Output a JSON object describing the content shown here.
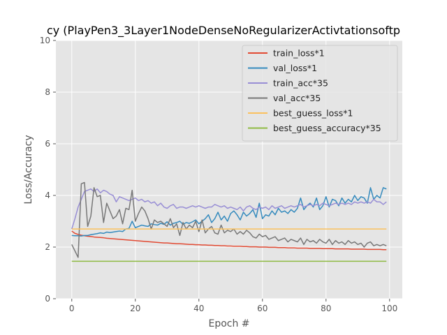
{
  "chart_data": {
    "type": "line",
    "title": "cy (PlayPen3_3Layer1NodeDenseNoRegularizerActivtationsoftp",
    "xlabel": "Epoch #",
    "ylabel": "Loss/Accuracy",
    "xlim": [
      -5,
      104
    ],
    "ylim": [
      0,
      10
    ],
    "xticks": [
      0,
      20,
      40,
      60,
      80,
      100
    ],
    "yticks": [
      0,
      2,
      4,
      6,
      8,
      10
    ],
    "grid": true,
    "legend_position": "top-right",
    "series": [
      {
        "name": "train_loss*1",
        "color": "#E24A33",
        "x_start": 0,
        "values": [
          2.62,
          2.53,
          2.49,
          2.46,
          2.44,
          2.42,
          2.41,
          2.39,
          2.38,
          2.37,
          2.36,
          2.34,
          2.33,
          2.32,
          2.31,
          2.3,
          2.29,
          2.28,
          2.27,
          2.26,
          2.25,
          2.24,
          2.23,
          2.22,
          2.21,
          2.2,
          2.19,
          2.18,
          2.17,
          2.16,
          2.16,
          2.15,
          2.14,
          2.13,
          2.13,
          2.12,
          2.11,
          2.1,
          2.1,
          2.09,
          2.09,
          2.08,
          2.08,
          2.07,
          2.07,
          2.06,
          2.06,
          2.05,
          2.05,
          2.04,
          2.04,
          2.03,
          2.03,
          2.03,
          2.02,
          2.02,
          2.01,
          2.01,
          2.01,
          2.0,
          2.0,
          2.0,
          1.99,
          1.99,
          1.99,
          1.98,
          1.98,
          1.98,
          1.97,
          1.97,
          1.97,
          1.96,
          1.96,
          1.96,
          1.96,
          1.95,
          1.95,
          1.95,
          1.95,
          1.94,
          1.94,
          1.94,
          1.94,
          1.93,
          1.93,
          1.93,
          1.93,
          1.93,
          1.92,
          1.92,
          1.92,
          1.92,
          1.92,
          1.91,
          1.91,
          1.91,
          1.91,
          1.91,
          1.9,
          1.9
        ]
      },
      {
        "name": "val_loss*1",
        "color": "#348ABD",
        "x_start": 0,
        "values": [
          2.45,
          2.44,
          2.44,
          2.43,
          2.45,
          2.45,
          2.48,
          2.5,
          2.52,
          2.55,
          2.53,
          2.58,
          2.56,
          2.58,
          2.6,
          2.62,
          2.6,
          2.7,
          2.72,
          3.0,
          2.75,
          2.8,
          2.85,
          2.82,
          2.8,
          2.9,
          2.87,
          2.85,
          2.92,
          2.88,
          2.98,
          2.85,
          2.92,
          2.95,
          3.0,
          2.88,
          2.95,
          2.92,
          2.98,
          3.05,
          2.9,
          3.0,
          3.1,
          3.25,
          2.95,
          3.1,
          3.35,
          3.05,
          3.2,
          3.0,
          3.3,
          3.4,
          3.25,
          3.05,
          3.35,
          3.2,
          3.3,
          3.45,
          3.15,
          3.7,
          3.1,
          3.25,
          3.2,
          3.4,
          3.25,
          3.5,
          3.35,
          3.4,
          3.3,
          3.45,
          3.35,
          3.5,
          3.9,
          3.45,
          3.6,
          3.7,
          3.55,
          3.9,
          3.45,
          3.6,
          3.95,
          3.55,
          3.85,
          3.8,
          3.6,
          3.9,
          3.7,
          3.85,
          3.75,
          4.0,
          3.8,
          3.95,
          3.9,
          3.7,
          4.3,
          3.85,
          4.0,
          3.9,
          4.3,
          4.25
        ]
      },
      {
        "name": "train_acc*35",
        "color": "#988ED5",
        "x_start": 0,
        "values": [
          2.7,
          3.1,
          3.55,
          3.85,
          4.15,
          4.2,
          4.25,
          4.15,
          4.25,
          4.1,
          4.2,
          4.15,
          4.05,
          4.0,
          3.75,
          3.95,
          3.9,
          3.85,
          3.8,
          3.85,
          3.9,
          3.8,
          3.85,
          3.75,
          3.8,
          3.7,
          3.75,
          3.6,
          3.7,
          3.55,
          3.5,
          3.6,
          3.65,
          3.5,
          3.55,
          3.55,
          3.5,
          3.55,
          3.6,
          3.55,
          3.6,
          3.55,
          3.5,
          3.55,
          3.55,
          3.65,
          3.6,
          3.55,
          3.6,
          3.5,
          3.55,
          3.5,
          3.45,
          3.55,
          3.4,
          3.55,
          3.6,
          3.5,
          3.45,
          3.55,
          3.5,
          3.55,
          3.45,
          3.6,
          3.5,
          3.55,
          3.6,
          3.5,
          3.55,
          3.6,
          3.55,
          3.6,
          3.65,
          3.55,
          3.6,
          3.65,
          3.6,
          3.65,
          3.6,
          3.7,
          3.65,
          3.6,
          3.65,
          3.7,
          3.65,
          3.7,
          3.65,
          3.7,
          3.65,
          3.75,
          3.7,
          3.75,
          3.7,
          3.75,
          3.7,
          3.85,
          3.75,
          3.75,
          3.65,
          3.75
        ]
      },
      {
        "name": "val_acc*35",
        "color": "#777777",
        "x_start": 0,
        "values": [
          2.1,
          1.85,
          1.6,
          4.45,
          4.5,
          2.8,
          3.2,
          4.3,
          3.95,
          4.0,
          2.95,
          3.7,
          3.4,
          3.1,
          3.2,
          3.45,
          2.9,
          3.5,
          3.45,
          4.2,
          3.0,
          3.3,
          3.55,
          3.4,
          3.1,
          2.7,
          3.05,
          2.95,
          3.0,
          2.9,
          2.8,
          3.1,
          2.75,
          2.9,
          2.45,
          2.95,
          2.7,
          2.85,
          2.75,
          3.0,
          2.6,
          3.05,
          2.55,
          2.7,
          2.8,
          2.55,
          2.5,
          2.85,
          2.55,
          2.65,
          2.6,
          2.7,
          2.5,
          2.6,
          2.5,
          2.65,
          2.55,
          2.4,
          2.35,
          2.5,
          2.4,
          2.45,
          2.3,
          2.35,
          2.4,
          2.25,
          2.3,
          2.35,
          2.2,
          2.3,
          2.25,
          2.2,
          2.35,
          2.1,
          2.3,
          2.2,
          2.25,
          2.15,
          2.3,
          2.2,
          2.15,
          2.3,
          2.1,
          2.25,
          2.15,
          2.2,
          2.1,
          2.25,
          2.15,
          2.2,
          2.1,
          2.15,
          2.0,
          2.15,
          2.2,
          2.05,
          2.1,
          2.05,
          2.1,
          2.05
        ]
      },
      {
        "name": "best_guess_loss*1",
        "color": "#FBC15E",
        "x_start": 0,
        "values": [
          2.7,
          2.7
        ]
      },
      {
        "name": "best_guess_accuracy*35",
        "color": "#8EBA42",
        "x_start": 0,
        "values": [
          1.45,
          1.45
        ]
      }
    ]
  }
}
